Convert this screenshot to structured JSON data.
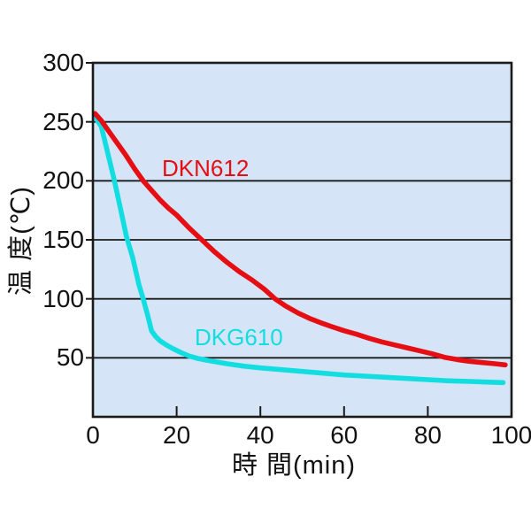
{
  "chart_data": {
    "type": "line",
    "title": "",
    "xlabel": "時 間(min)",
    "ylabel": "温 度(℃)",
    "xlim": [
      0,
      100
    ],
    "ylim": [
      0,
      300
    ],
    "grid": "horizontal-only",
    "legend_position": "labels-on-plot",
    "plot_background": "#d5e5f7",
    "axis_color": "#1a1a1a",
    "x_ticks": [
      0,
      20,
      40,
      60,
      80,
      100
    ],
    "x_inner_ticks": [
      20,
      40,
      60,
      80
    ],
    "y_ticks": [
      50,
      100,
      150,
      200,
      250,
      300
    ],
    "y_gridlines": [
      50,
      100,
      150,
      200,
      250
    ],
    "series": [
      {
        "name": "DKG610",
        "color": "#12dee2",
        "points": [
          [
            0.5,
            254
          ],
          [
            2,
            246
          ],
          [
            3.5,
            224
          ],
          [
            5,
            202
          ],
          [
            6.5,
            178
          ],
          [
            8,
            153
          ],
          [
            9.5,
            135
          ],
          [
            11,
            112
          ],
          [
            12,
            100
          ],
          [
            13,
            87
          ],
          [
            14,
            73
          ],
          [
            15,
            68
          ],
          [
            16,
            64.5
          ],
          [
            17.5,
            61
          ],
          [
            19,
            58
          ],
          [
            21,
            54.5
          ],
          [
            23,
            51.5
          ],
          [
            25,
            49.5
          ],
          [
            28,
            47.5
          ],
          [
            32,
            45
          ],
          [
            36,
            43
          ],
          [
            40,
            41.5
          ],
          [
            45,
            40
          ],
          [
            50,
            38.5
          ],
          [
            55,
            37
          ],
          [
            60,
            35.5
          ],
          [
            65,
            34.5
          ],
          [
            70,
            33.5
          ],
          [
            75,
            32.5
          ],
          [
            80,
            31.5
          ],
          [
            85,
            30.5
          ],
          [
            90,
            30
          ],
          [
            94,
            29.5
          ],
          [
            98,
            29
          ]
        ]
      },
      {
        "name": "DKN612",
        "color": "#e50e13",
        "points": [
          [
            0.5,
            257
          ],
          [
            2,
            251
          ],
          [
            4,
            241
          ],
          [
            6,
            231
          ],
          [
            8,
            221
          ],
          [
            10,
            210
          ],
          [
            12,
            200
          ],
          [
            14,
            192
          ],
          [
            16,
            184
          ],
          [
            18,
            177
          ],
          [
            20,
            171
          ],
          [
            23,
            160
          ],
          [
            26,
            150
          ],
          [
            29,
            140
          ],
          [
            32,
            131
          ],
          [
            35,
            123
          ],
          [
            38,
            116
          ],
          [
            41,
            108
          ],
          [
            43.5,
            100
          ],
          [
            46,
            94
          ],
          [
            49,
            88
          ],
          [
            52,
            83
          ],
          [
            55,
            79
          ],
          [
            57,
            76.5
          ],
          [
            60,
            73
          ],
          [
            63,
            70
          ],
          [
            66,
            66.5
          ],
          [
            69,
            63.5
          ],
          [
            72,
            61
          ],
          [
            75,
            58.5
          ],
          [
            78,
            56
          ],
          [
            81,
            53.5
          ],
          [
            84,
            50.5
          ],
          [
            87,
            48.5
          ],
          [
            90,
            47
          ],
          [
            93,
            46
          ],
          [
            96,
            45
          ],
          [
            98.5,
            44
          ]
        ]
      }
    ]
  }
}
